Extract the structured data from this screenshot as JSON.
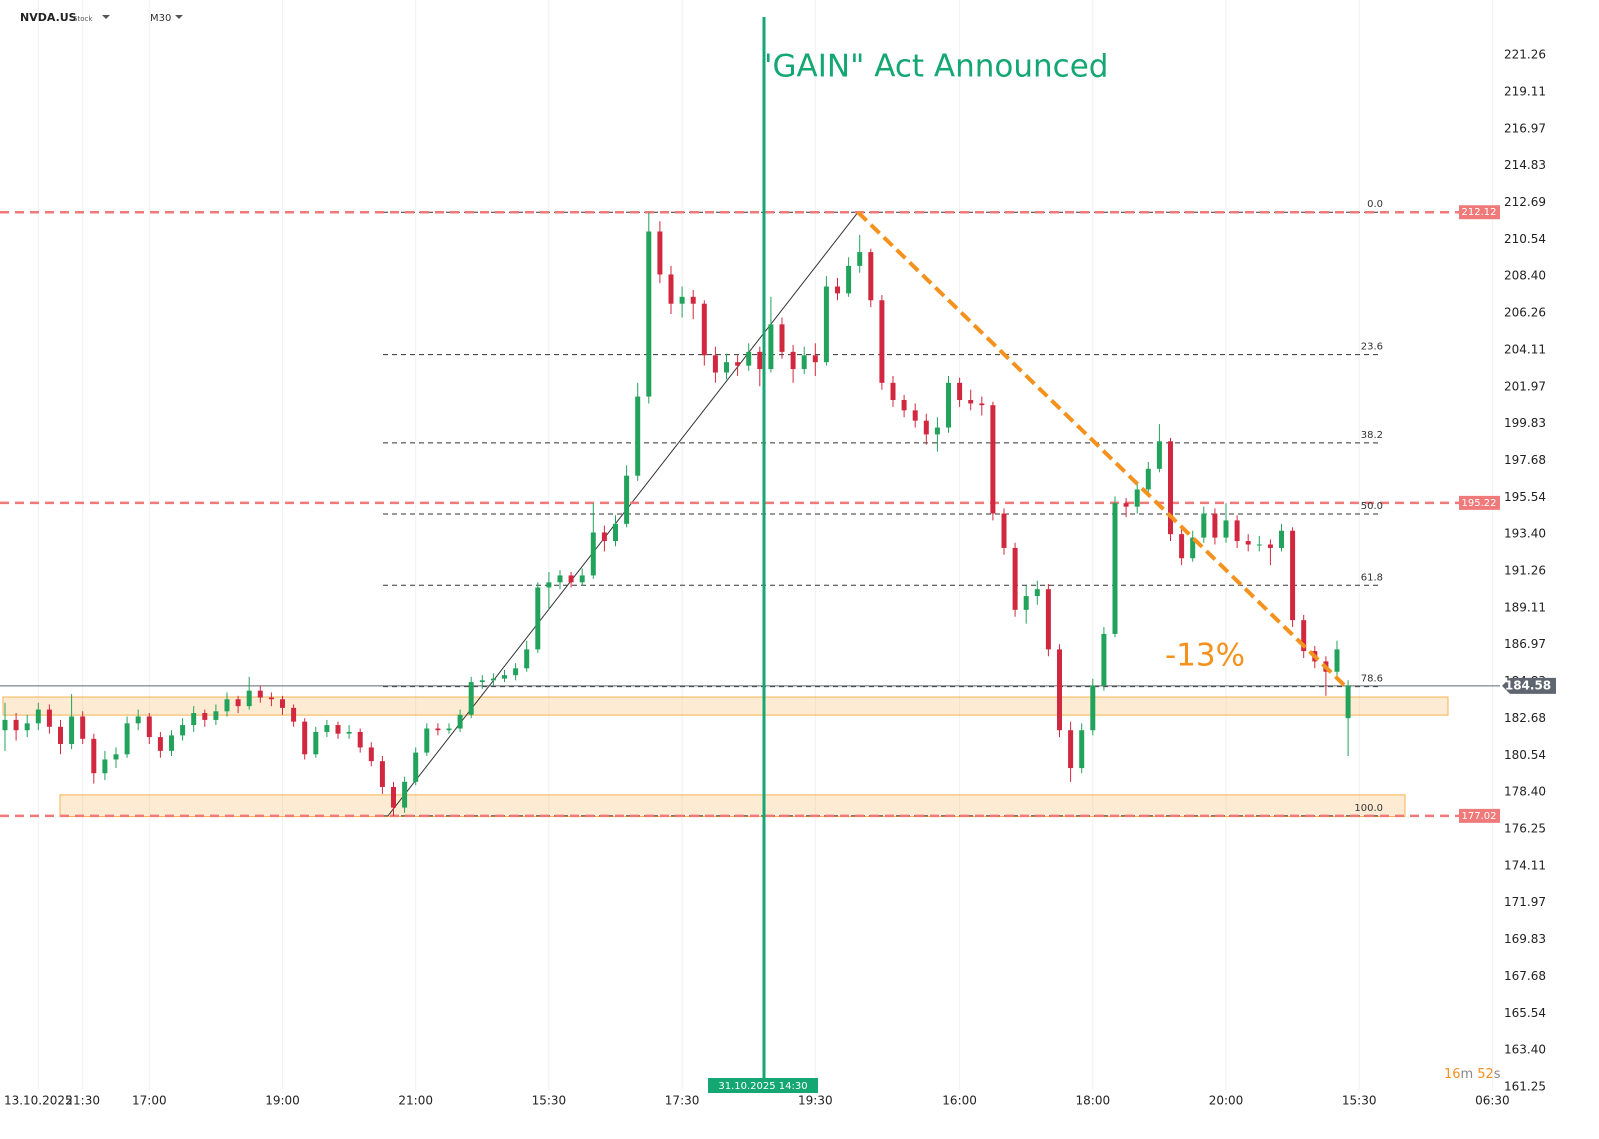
{
  "chart_data": {
    "type": "candlestick",
    "symbol": "NVDA.US",
    "asset_class": "Stock",
    "timeframe": "M30",
    "up_color": "#22a35c",
    "down_color": "#d1283f",
    "categories": [
      null,
      null,
      null,
      "13.10.2025",
      null,
      null,
      null,
      "21:30",
      null,
      null,
      null,
      null,
      null,
      "17:00",
      null,
      null,
      null,
      null,
      null,
      null,
      null,
      null,
      null,
      null,
      null,
      "19:00",
      null,
      null,
      null,
      null,
      null,
      null,
      null,
      null,
      null,
      null,
      null,
      "21:00",
      null,
      null,
      null,
      null,
      null,
      null,
      null,
      null,
      null,
      null,
      null,
      "15:30",
      null,
      null,
      null,
      null,
      null,
      null,
      null,
      null,
      null,
      null,
      null,
      "17:30",
      null,
      null,
      null,
      null,
      null,
      null,
      null,
      null,
      null,
      null,
      null,
      "19:30",
      null,
      null,
      null,
      null,
      null,
      null,
      null,
      null,
      null,
      null,
      null,
      null,
      "16:00",
      null,
      null,
      null,
      null,
      null,
      null,
      null,
      null,
      null,
      null,
      null,
      "18:00",
      null,
      null,
      null,
      null,
      null,
      null,
      null,
      null,
      null,
      null,
      null,
      "20:00",
      null,
      null,
      null,
      null,
      null,
      null,
      null,
      null,
      null,
      null,
      null,
      "15:30",
      null,
      null,
      null,
      null,
      null,
      null,
      null,
      null,
      null,
      null,
      null,
      "06:30"
    ],
    "ohlc": [
      [
        182.0,
        183.6,
        180.8,
        182.6
      ],
      [
        182.6,
        183.0,
        181.4,
        182.0
      ],
      [
        182.0,
        182.9,
        181.6,
        182.4
      ],
      [
        182.4,
        183.6,
        182.0,
        183.2
      ],
      [
        183.2,
        183.5,
        181.8,
        182.2
      ],
      [
        182.2,
        182.6,
        180.6,
        181.2
      ],
      [
        181.2,
        184.1,
        180.9,
        182.8
      ],
      [
        182.8,
        183.1,
        181.2,
        181.5
      ],
      [
        181.5,
        181.8,
        178.9,
        179.5
      ],
      [
        179.5,
        180.8,
        179.1,
        180.3
      ],
      [
        180.3,
        181.0,
        179.8,
        180.6
      ],
      [
        180.6,
        182.8,
        180.4,
        182.4
      ],
      [
        182.4,
        183.2,
        182.0,
        182.8
      ],
      [
        182.8,
        183.0,
        181.2,
        181.6
      ],
      [
        181.6,
        181.9,
        180.4,
        180.8
      ],
      [
        180.8,
        182.0,
        180.5,
        181.7
      ],
      [
        181.7,
        182.7,
        181.4,
        182.3
      ],
      [
        182.3,
        183.4,
        181.9,
        183.0
      ],
      [
        183.0,
        183.2,
        182.2,
        182.6
      ],
      [
        182.6,
        183.5,
        182.3,
        183.1
      ],
      [
        183.1,
        184.2,
        182.8,
        183.8
      ],
      [
        183.8,
        184.0,
        183.0,
        183.4
      ],
      [
        183.4,
        185.1,
        183.2,
        184.3
      ],
      [
        184.3,
        184.6,
        183.6,
        183.9
      ],
      [
        183.9,
        184.2,
        183.4,
        183.8
      ],
      [
        183.8,
        184.0,
        182.9,
        183.3
      ],
      [
        183.3,
        183.5,
        182.2,
        182.5
      ],
      [
        182.5,
        182.7,
        180.3,
        180.6
      ],
      [
        180.6,
        182.2,
        180.4,
        181.9
      ],
      [
        181.9,
        182.6,
        181.6,
        182.3
      ],
      [
        182.3,
        182.5,
        181.5,
        181.8
      ],
      [
        181.8,
        182.3,
        181.5,
        181.9
      ],
      [
        181.9,
        182.1,
        180.7,
        181.0
      ],
      [
        181.0,
        181.3,
        179.9,
        180.2
      ],
      [
        180.2,
        180.5,
        178.3,
        178.7
      ],
      [
        178.7,
        179.0,
        177.02,
        177.5
      ],
      [
        177.5,
        179.3,
        177.2,
        179.0
      ],
      [
        179.0,
        181.0,
        178.8,
        180.7
      ],
      [
        180.7,
        182.4,
        180.5,
        182.1
      ],
      [
        182.1,
        182.4,
        181.7,
        182.0
      ],
      [
        182.0,
        182.4,
        181.8,
        182.1
      ],
      [
        182.1,
        183.2,
        181.9,
        182.9
      ],
      [
        182.9,
        185.1,
        182.7,
        184.8
      ],
      [
        184.8,
        185.2,
        184.4,
        184.9
      ],
      [
        184.9,
        185.3,
        184.6,
        185.0
      ],
      [
        185.0,
        185.5,
        184.8,
        185.2
      ],
      [
        185.2,
        185.9,
        184.9,
        185.6
      ],
      [
        185.6,
        187.2,
        185.4,
        186.7
      ],
      [
        186.7,
        190.6,
        186.5,
        190.3
      ],
      [
        190.3,
        191.2,
        189.0,
        190.6
      ],
      [
        190.6,
        191.3,
        190.2,
        191.0
      ],
      [
        191.0,
        191.2,
        190.3,
        190.6
      ],
      [
        190.6,
        191.4,
        190.4,
        191.0
      ],
      [
        191.0,
        195.2,
        190.8,
        193.5
      ],
      [
        193.5,
        193.9,
        192.4,
        193.0
      ],
      [
        193.0,
        194.5,
        192.7,
        194.0
      ],
      [
        194.0,
        197.4,
        193.8,
        196.8
      ],
      [
        196.8,
        202.2,
        196.5,
        201.4
      ],
      [
        201.4,
        212.12,
        201.0,
        211.0
      ],
      [
        211.0,
        211.6,
        208.0,
        208.5
      ],
      [
        208.5,
        209.0,
        206.2,
        206.8
      ],
      [
        206.8,
        207.8,
        206.0,
        207.2
      ],
      [
        207.2,
        207.6,
        205.9,
        206.8
      ],
      [
        206.8,
        207.0,
        203.2,
        203.8
      ],
      [
        203.8,
        204.3,
        202.2,
        202.8
      ],
      [
        202.8,
        203.9,
        202.4,
        203.4
      ],
      [
        203.4,
        203.8,
        202.6,
        203.2
      ],
      [
        203.2,
        204.5,
        202.9,
        204.0
      ],
      [
        204.0,
        204.3,
        202.0,
        203.0
      ],
      [
        203.0,
        207.2,
        202.8,
        205.6
      ],
      [
        205.6,
        206.0,
        203.6,
        204.0
      ],
      [
        204.0,
        204.4,
        202.2,
        203.0
      ],
      [
        203.0,
        204.3,
        202.7,
        203.8
      ],
      [
        203.8,
        204.5,
        202.6,
        203.4
      ],
      [
        203.4,
        208.4,
        203.2,
        207.8
      ],
      [
        207.8,
        208.3,
        207.0,
        207.4
      ],
      [
        207.4,
        209.5,
        207.2,
        209.0
      ],
      [
        209.0,
        210.8,
        208.6,
        209.8
      ],
      [
        209.8,
        210.0,
        206.6,
        207.0
      ],
      [
        207.0,
        207.3,
        201.8,
        202.2
      ],
      [
        202.2,
        202.6,
        200.8,
        201.2
      ],
      [
        201.2,
        201.5,
        200.2,
        200.6
      ],
      [
        200.6,
        201.0,
        199.6,
        200.0
      ],
      [
        200.0,
        200.4,
        198.6,
        199.2
      ],
      [
        199.2,
        200.2,
        198.2,
        199.6
      ],
      [
        199.6,
        202.6,
        199.3,
        202.2
      ],
      [
        202.2,
        202.5,
        200.8,
        201.2
      ],
      [
        201.2,
        201.8,
        200.6,
        201.0
      ],
      [
        201.0,
        201.4,
        200.3,
        200.9
      ],
      [
        200.9,
        201.1,
        194.2,
        194.6
      ],
      [
        194.6,
        194.9,
        192.2,
        192.6
      ],
      [
        192.6,
        192.9,
        188.6,
        189.0
      ],
      [
        189.0,
        190.4,
        188.2,
        189.8
      ],
      [
        189.8,
        190.7,
        189.3,
        190.2
      ],
      [
        190.2,
        190.5,
        186.3,
        186.7
      ],
      [
        186.7,
        187.0,
        181.6,
        182.0
      ],
      [
        182.0,
        182.5,
        179.0,
        179.8
      ],
      [
        179.8,
        182.4,
        179.5,
        182.0
      ],
      [
        182.0,
        185.0,
        181.7,
        184.6
      ],
      [
        184.6,
        188.0,
        184.3,
        187.6
      ],
      [
        187.6,
        195.6,
        187.4,
        195.2
      ],
      [
        195.2,
        195.5,
        194.4,
        195.0
      ],
      [
        195.0,
        196.5,
        194.6,
        196.0
      ],
      [
        196.0,
        197.6,
        195.7,
        197.2
      ],
      [
        197.2,
        199.8,
        197.0,
        198.8
      ],
      [
        198.8,
        199.0,
        193.0,
        193.4
      ],
      [
        193.4,
        193.7,
        191.6,
        192.0
      ],
      [
        192.0,
        193.6,
        191.8,
        193.2
      ],
      [
        193.2,
        195.0,
        192.9,
        194.6
      ],
      [
        194.6,
        194.9,
        192.8,
        193.2
      ],
      [
        193.2,
        195.2,
        192.9,
        194.2
      ],
      [
        194.2,
        194.5,
        192.6,
        193.0
      ],
      [
        193.0,
        193.4,
        192.4,
        192.8
      ],
      [
        192.8,
        193.3,
        192.4,
        192.8
      ],
      [
        192.8,
        193.1,
        191.6,
        192.6
      ],
      [
        192.6,
        194.0,
        192.4,
        193.6
      ],
      [
        193.6,
        193.8,
        188.0,
        188.4
      ],
      [
        188.4,
        188.7,
        186.2,
        186.6
      ],
      [
        186.6,
        186.9,
        185.6,
        186.0
      ],
      [
        186.0,
        186.3,
        184.0,
        185.4
      ],
      [
        185.4,
        187.2,
        185.0,
        186.7
      ],
      [
        182.7,
        184.9,
        180.5,
        184.58
      ],
      null,
      null,
      null,
      null,
      null,
      null,
      null,
      null,
      null,
      null,
      null,
      null,
      null
    ],
    "ylim": [
      161.08,
      224.46
    ],
    "yticks": [
      221.26,
      219.11,
      216.97,
      214.83,
      212.69,
      210.54,
      {
        "value": 208.4,
        "label": "208.40"
      },
      206.26,
      204.11,
      201.97,
      199.83,
      197.68,
      195.54,
      {
        "value": 193.4,
        "label": "193.40"
      },
      191.26,
      189.11,
      186.97,
      184.83,
      182.68,
      180.54,
      {
        "value": 178.4,
        "label": "178.40"
      },
      176.25,
      174.11,
      171.97,
      169.83,
      167.68,
      165.54,
      {
        "value": 163.4,
        "label": "163.40"
      },
      161.25
    ],
    "grid": true,
    "hlines": [
      {
        "value": 212.12,
        "color": "#f07a7a"
      },
      {
        "value": 195.22,
        "color": "#f07a7a"
      },
      {
        "value": 177.02,
        "color": "#f07a7a"
      }
    ],
    "last_price": {
      "value": 184.58,
      "color": "#5f6670"
    },
    "fibonacci": {
      "high": 212.12,
      "low": 177.02,
      "levels": [
        {
          "value": 0,
          "label": "0.0"
        },
        23.6,
        38.2,
        {
          "value": 50,
          "label": "50.0"
        },
        61.8,
        78.6,
        {
          "value": 100,
          "label": "100.0"
        }
      ]
    },
    "zones": [
      {
        "from": 182.88,
        "to": 183.93,
        "color": "#f7b250"
      },
      {
        "from": 176.98,
        "to": 178.24,
        "color": "#f7b250"
      }
    ],
    "event": {
      "label": "'GAIN\" Act Announced",
      "date": "31.10.2025 14:30",
      "color": "#14a773"
    },
    "decline": {
      "from": 212.12,
      "to": 184.58,
      "label": "-13%",
      "color": "#f5921e"
    },
    "countdown": {
      "minutes": 16,
      "minutes_unit": "m",
      "seconds": 52,
      "seconds_unit": "s"
    }
  }
}
